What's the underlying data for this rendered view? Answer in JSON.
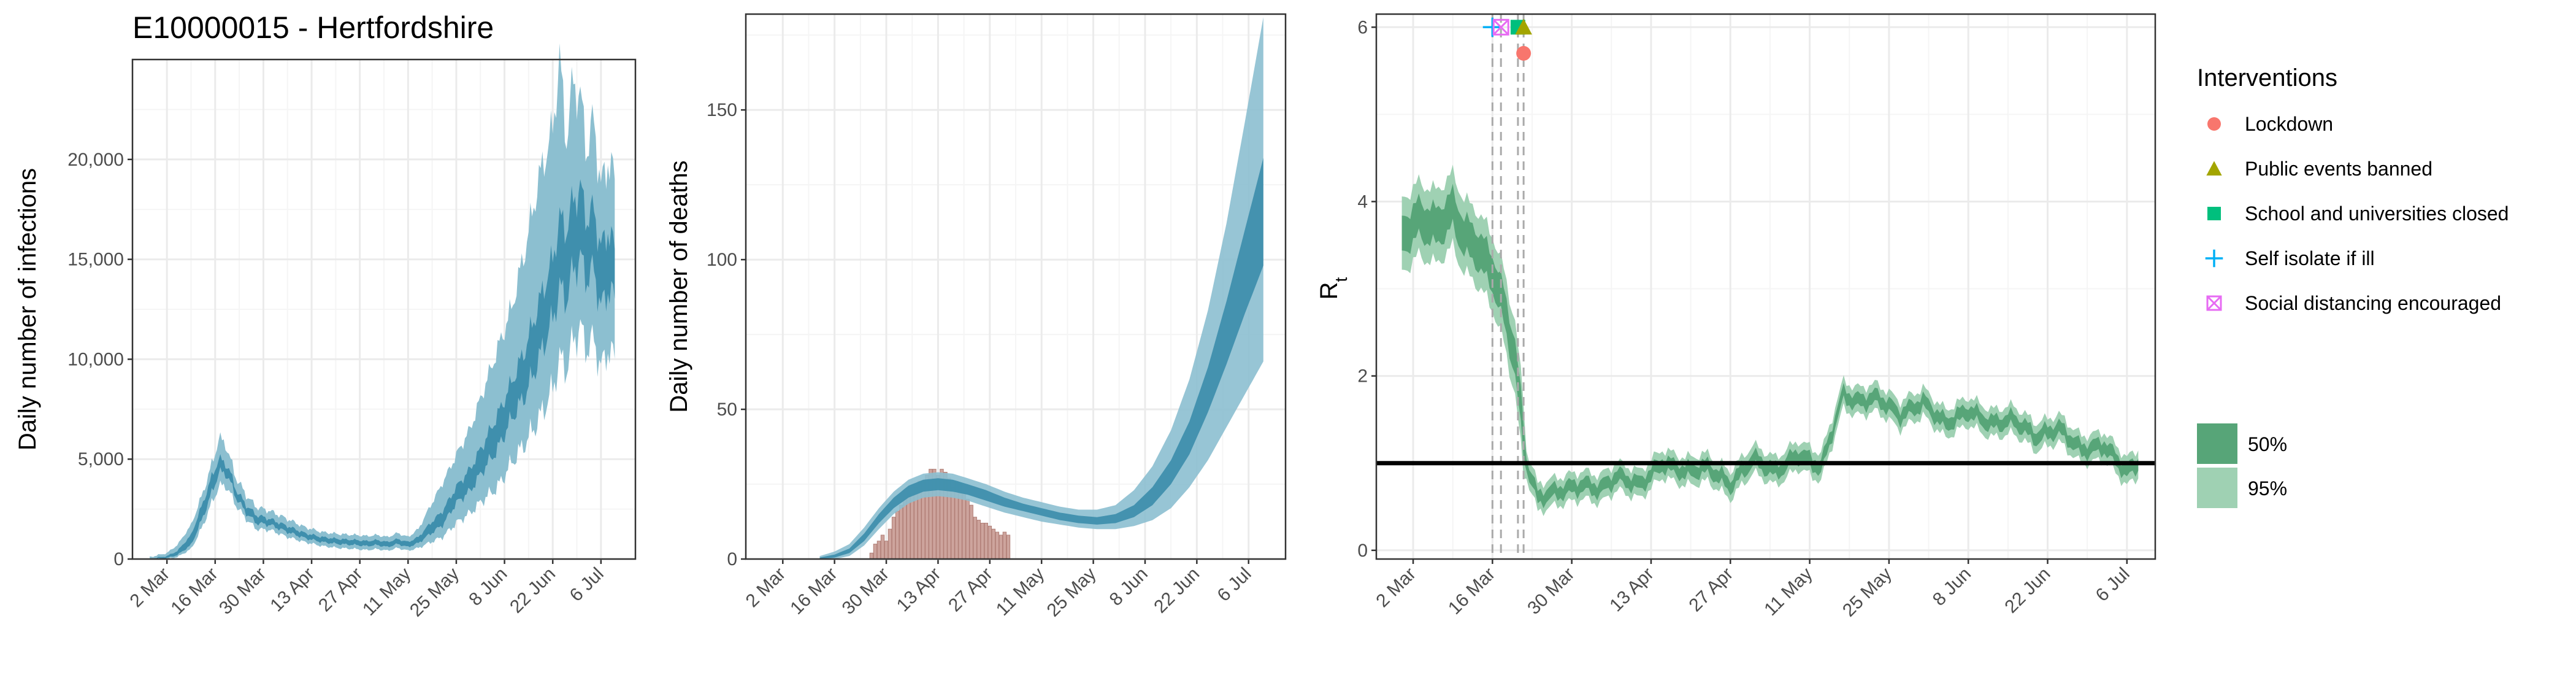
{
  "title": "E10000015 - Hertfordshire",
  "colors": {
    "infections_95": "#8cbfd0",
    "infections_50": "#3f8fad",
    "deaths_bar": "#c89a92",
    "rt_95": "#9fd1b3",
    "rt_50": "#57a578",
    "grid_major": "#ebebeb",
    "grid_minor": "#f5f5f5",
    "lockdown": "#f8766d",
    "public_events": "#a3a500",
    "school": "#00bf7d",
    "self_isolate": "#00b0f6",
    "social_distancing": "#e76bf3"
  },
  "legend": {
    "interventions_title": "Interventions",
    "interventions": [
      {
        "label": "Lockdown",
        "shape": "circle",
        "color": "#f8766d"
      },
      {
        "label": "Public events banned",
        "shape": "triangle",
        "color": "#a3a500"
      },
      {
        "label": "School and universities closed",
        "shape": "square",
        "color": "#00bf7d"
      },
      {
        "label": "Self isolate if ill",
        "shape": "plus",
        "color": "#00b0f6"
      },
      {
        "label": "Social distancing encouraged",
        "shape": "square-cross",
        "color": "#e76bf3"
      }
    ],
    "ci": [
      {
        "label": "50%",
        "color": "#57a578"
      },
      {
        "label": "95%",
        "color": "#9fd1b3"
      }
    ]
  },
  "chart_data": [
    {
      "type": "area",
      "name": "infections",
      "title": "E10000015 - Hertfordshire",
      "xlabel": "",
      "ylabel": "Daily number of infections",
      "x_tick_labels": [
        "2 Mar",
        "16 Mar",
        "30 Mar",
        "13 Apr",
        "27 Apr",
        "11 May",
        "25 May",
        "8 Jun",
        "22 Jun",
        "6 Jul"
      ],
      "x_tick_days": [
        0,
        14,
        28,
        42,
        56,
        70,
        84,
        98,
        112,
        126
      ],
      "xlim_days": [
        -10,
        136
      ],
      "y_ticks": [
        0,
        5000,
        10000,
        15000,
        20000
      ],
      "y_tick_labels": [
        "0",
        "5,000",
        "10,000",
        "15,000",
        "20,000"
      ],
      "ylim": [
        0,
        25000
      ],
      "grid": true,
      "band_keypoints_days": [
        -5,
        0,
        3,
        7,
        10,
        13,
        15,
        17,
        18,
        20,
        23,
        26,
        30,
        35,
        40,
        45,
        50,
        55,
        58,
        61,
        64,
        67,
        70,
        73,
        76,
        80,
        84,
        88,
        92,
        96,
        100,
        104,
        108,
        112,
        114,
        116,
        118,
        120,
        122,
        124,
        126,
        128,
        130
      ],
      "band_50_low": [
        0,
        50,
        200,
        700,
        1900,
        3300,
        4300,
        4300,
        4000,
        3100,
        2300,
        1800,
        1700,
        1350,
        1050,
        850,
        750,
        700,
        650,
        700,
        600,
        750,
        600,
        800,
        1200,
        1700,
        2800,
        3400,
        4500,
        5500,
        7000,
        8200,
        10000,
        12000,
        13500,
        13000,
        14500,
        15000,
        14000,
        14500,
        12500,
        13500,
        13000
      ],
      "band_50_high": [
        0,
        150,
        400,
        1200,
        2600,
        4100,
        5000,
        4800,
        4500,
        3500,
        2700,
        2200,
        2000,
        1650,
        1300,
        1100,
        1000,
        950,
        900,
        950,
        850,
        1000,
        850,
        1100,
        1700,
        2400,
        3600,
        4500,
        5800,
        7200,
        8800,
        10500,
        12800,
        15000,
        17000,
        16500,
        18000,
        18500,
        17000,
        17500,
        15500,
        16500,
        15500
      ],
      "band_95_low": [
        0,
        0,
        100,
        500,
        1500,
        2800,
        3600,
        3700,
        3400,
        2700,
        2000,
        1500,
        1450,
        1100,
        850,
        650,
        550,
        500,
        450,
        500,
        420,
        550,
        420,
        550,
        800,
        1100,
        1800,
        2300,
        3000,
        3600,
        4800,
        5800,
        7000,
        8500,
        10000,
        9500,
        11000,
        11500,
        10500,
        11000,
        9500,
        10500,
        10000
      ],
      "band_95_high": [
        100,
        300,
        700,
        1700,
        3100,
        4700,
        6000,
        5800,
        5200,
        4100,
        3200,
        2600,
        2400,
        2000,
        1600,
        1350,
        1250,
        1200,
        1150,
        1200,
        1100,
        1300,
        1100,
        1500,
        2500,
        3800,
        5200,
        6500,
        8500,
        10500,
        12500,
        15500,
        19000,
        21500,
        25000,
        21000,
        24000,
        23000,
        20500,
        22000,
        18500,
        20000,
        19000
      ]
    },
    {
      "type": "bar",
      "name": "deaths",
      "title": "",
      "xlabel": "",
      "ylabel": "Daily number of deaths",
      "x_tick_labels": [
        "2 Mar",
        "16 Mar",
        "30 Mar",
        "13 Apr",
        "27 Apr",
        "11 May",
        "25 May",
        "8 Jun",
        "22 Jun",
        "6 Jul"
      ],
      "x_tick_days": [
        0,
        14,
        28,
        42,
        56,
        70,
        84,
        98,
        112,
        126
      ],
      "xlim_days": [
        -10,
        136
      ],
      "y_ticks": [
        0,
        50,
        100,
        150
      ],
      "y_tick_labels": [
        "0",
        "50",
        "100",
        "150"
      ],
      "ylim": [
        0,
        182
      ],
      "grid": true,
      "bar_start_day": 24,
      "bar_values": [
        2,
        5,
        6,
        8,
        6,
        10,
        14,
        16,
        18,
        20,
        22,
        22,
        24,
        26,
        26,
        28,
        30,
        30,
        28,
        30,
        29,
        27,
        24,
        26,
        25,
        22,
        20,
        18,
        14,
        13,
        12,
        12,
        11,
        10,
        9,
        8,
        9,
        8
      ],
      "band_keypoints_days": [
        10,
        14,
        18,
        22,
        26,
        30,
        34,
        38,
        42,
        46,
        50,
        55,
        60,
        65,
        70,
        75,
        80,
        85,
        90,
        95,
        100,
        105,
        110,
        115,
        120,
        125,
        130
      ],
      "band_50_low": [
        0,
        0.5,
        2,
        6,
        12,
        17,
        20.5,
        22.5,
        23,
        22.5,
        21.5,
        19.5,
        17.5,
        16,
        14.5,
        13,
        12,
        11.5,
        12,
        14,
        18,
        25,
        35,
        49,
        65,
        82,
        98
      ],
      "band_50_high": [
        0.5,
        1.5,
        3.5,
        8.5,
        15,
        20.5,
        24.5,
        26.5,
        27,
        26.5,
        25,
        23,
        20.5,
        18.5,
        17,
        15.5,
        14.5,
        14,
        15,
        18,
        24,
        33,
        46,
        64,
        86,
        110,
        134
      ],
      "band_95_low": [
        0,
        0,
        1,
        4.5,
        10,
        15,
        18.5,
        20.5,
        21,
        20.5,
        19.5,
        17.5,
        15.5,
        14,
        12.5,
        11.5,
        10.5,
        10,
        10,
        11,
        13,
        17,
        24,
        33,
        44,
        55,
        66
      ],
      "band_95_high": [
        1,
        2.5,
        5,
        10.5,
        17,
        22.5,
        26.5,
        28.5,
        29,
        28.5,
        27,
        25,
        22.5,
        20.5,
        19,
        17.5,
        16.5,
        16.5,
        18,
        23,
        31,
        43,
        60,
        83,
        112,
        146,
        181
      ]
    },
    {
      "type": "line",
      "name": "Rt",
      "title": "",
      "xlabel": "",
      "ylabel": "R",
      "ylabel_subscript": "t",
      "x_tick_labels": [
        "2 Mar",
        "16 Mar",
        "30 Mar",
        "13 Apr",
        "27 Apr",
        "11 May",
        "25 May",
        "8 Jun",
        "22 Jun",
        "6 Jul"
      ],
      "x_tick_days": [
        0,
        14,
        28,
        42,
        56,
        70,
        84,
        98,
        112,
        126
      ],
      "xlim_days": [
        -6.5,
        131
      ],
      "y_ticks": [
        0,
        2,
        4,
        6
      ],
      "y_tick_labels": [
        "0",
        "2",
        "4",
        "6"
      ],
      "ylim": [
        -0.1,
        6.15
      ],
      "grid": true,
      "reference_line_y": 1,
      "intervention_days": [
        {
          "day": 14,
          "type": "self_isolate",
          "y": 6
        },
        {
          "day": 15.5,
          "type": "social_distancing",
          "y": 6
        },
        {
          "day": 18.5,
          "type": "school",
          "y": 6
        },
        {
          "day": 19.5,
          "type": "public_events",
          "y": 6
        },
        {
          "day": 19.5,
          "type": "lockdown",
          "y": 5.7
        }
      ],
      "vline_days": [
        14,
        15.5,
        18.5,
        19.5
      ],
      "center_keypoints_days": [
        -2,
        1,
        4,
        7,
        9,
        11,
        13,
        14,
        16,
        18,
        20,
        22,
        24,
        27,
        30,
        33,
        36,
        40,
        44,
        48,
        52,
        56,
        60,
        64,
        68,
        72,
        76,
        78,
        82,
        86,
        90,
        94,
        98,
        102,
        106,
        110,
        114,
        118,
        122,
        126,
        128
      ],
      "center_values": [
        3.6,
        3.8,
        3.7,
        3.9,
        3.6,
        3.5,
        3.3,
        3.2,
        2.8,
        2.2,
        1.0,
        0.6,
        0.65,
        0.7,
        0.75,
        0.7,
        0.85,
        0.75,
        1.0,
        0.9,
        0.95,
        0.75,
        1.05,
        0.9,
        1.1,
        0.95,
        1.8,
        1.7,
        1.75,
        1.55,
        1.7,
        1.45,
        1.6,
        1.45,
        1.5,
        1.3,
        1.4,
        1.15,
        1.2,
        0.9,
        1.0
      ]
    }
  ]
}
